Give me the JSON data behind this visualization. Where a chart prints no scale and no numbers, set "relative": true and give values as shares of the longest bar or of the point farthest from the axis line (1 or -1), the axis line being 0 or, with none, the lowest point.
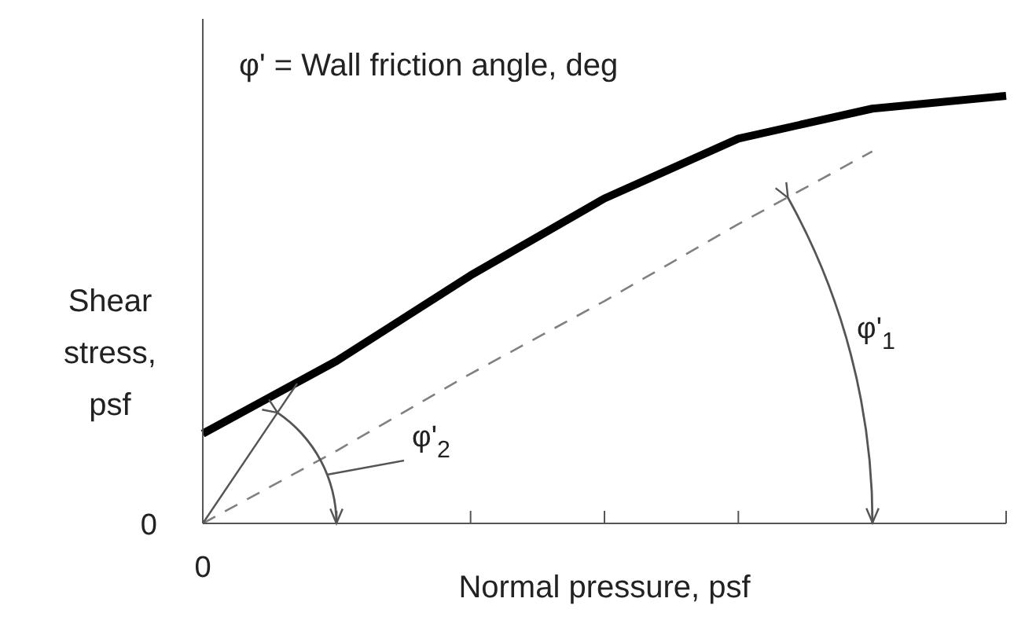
{
  "chart_data": {
    "type": "line",
    "relative": true,
    "xlabel": "Normal pressure, psf",
    "ylabel": "Shear stress, psf",
    "categories": [
      null,
      null,
      null,
      null,
      null,
      null,
      null
    ],
    "series": [
      {
        "color": "#000000",
        "line_style": "solid",
        "values": [
          0.21,
          0.38,
          0.58,
          0.76,
          0.9,
          0.97,
          1
        ]
      },
      {
        "color": "#808080",
        "line_style": "dashed",
        "values": [
          0,
          0.17,
          0.35,
          0.52,
          0.7,
          0.87,
          null
        ]
      }
    ],
    "marker": "none",
    "annotations": [
      "φ' = Wall friction angle, deg",
      "φ'$_{1}$",
      "φ'$_{2}$",
      "0",
      "0"
    ]
  }
}
